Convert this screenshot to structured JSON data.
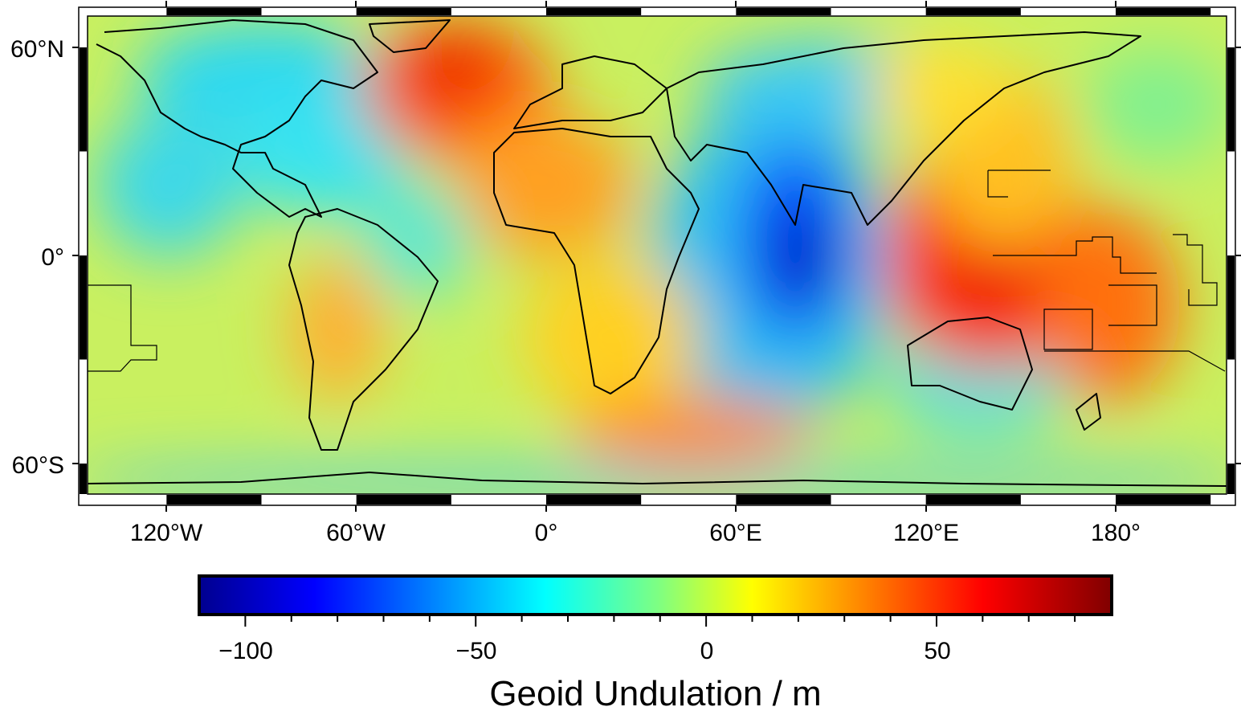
{
  "map": {
    "lat_labels": [
      "60°N",
      "0°",
      "60°S"
    ],
    "lon_labels": [
      "120°W",
      "60°W",
      "0°",
      "60°E",
      "120°E",
      "180°"
    ],
    "colors": {
      "land_outline": "#000000",
      "frame_dark": "#000000",
      "frame_light": "#ffffff"
    }
  },
  "colorbar": {
    "title": "Geoid Undulation / m",
    "tick_labels": [
      "−100",
      "−50",
      "0",
      "50"
    ],
    "range": [
      -110,
      88
    ],
    "stops": [
      {
        "value": -110,
        "color": "#00008f"
      },
      {
        "value": -85,
        "color": "#0000ff"
      },
      {
        "value": -60,
        "color": "#0080ff"
      },
      {
        "value": -35,
        "color": "#00ffff"
      },
      {
        "value": -10,
        "color": "#80ff80"
      },
      {
        "value": 10,
        "color": "#ffff00"
      },
      {
        "value": 35,
        "color": "#ff8000"
      },
      {
        "value": 60,
        "color": "#ff0000"
      },
      {
        "value": 88,
        "color": "#800000"
      }
    ]
  }
}
